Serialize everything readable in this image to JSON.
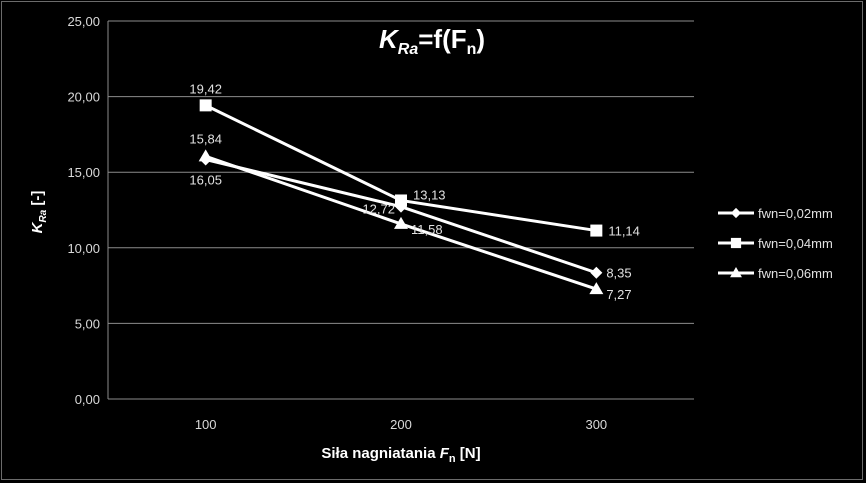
{
  "chart_data": {
    "type": "line",
    "title_main": "K",
    "title_sub": "Ra",
    "title_rest": "=f(F",
    "title_rest_sub": "n",
    "title_close": ")",
    "xlabel_text": "Siła nagniatania ",
    "xlabel_italic": "F",
    "xlabel_sub": "n",
    "xlabel_unit": " [N]",
    "ylabel_italic": "K",
    "ylabel_sub": "Ra",
    "ylabel_unit": " [-]",
    "categories": [
      "100",
      "200",
      "300"
    ],
    "ylim": [
      0,
      25
    ],
    "yticks": [
      "0,00",
      "5,00",
      "10,00",
      "15,00",
      "20,00",
      "25,00"
    ],
    "grid": true,
    "legend_position": "right",
    "series": [
      {
        "name": "fwn=0,02mm",
        "marker": "diamond",
        "values": [
          15.84,
          12.72,
          8.35
        ],
        "labels": [
          "15,84",
          "12,72",
          "8,35"
        ]
      },
      {
        "name": "fwn=0,04mm",
        "marker": "square",
        "values": [
          19.42,
          13.13,
          11.14
        ],
        "labels": [
          "19,42",
          "13,13",
          "11,14"
        ]
      },
      {
        "name": "fwn=0,06mm",
        "marker": "triangle",
        "values": [
          16.05,
          11.58,
          7.27
        ],
        "labels": [
          "16,05",
          "11,58",
          "7,27"
        ]
      }
    ]
  }
}
